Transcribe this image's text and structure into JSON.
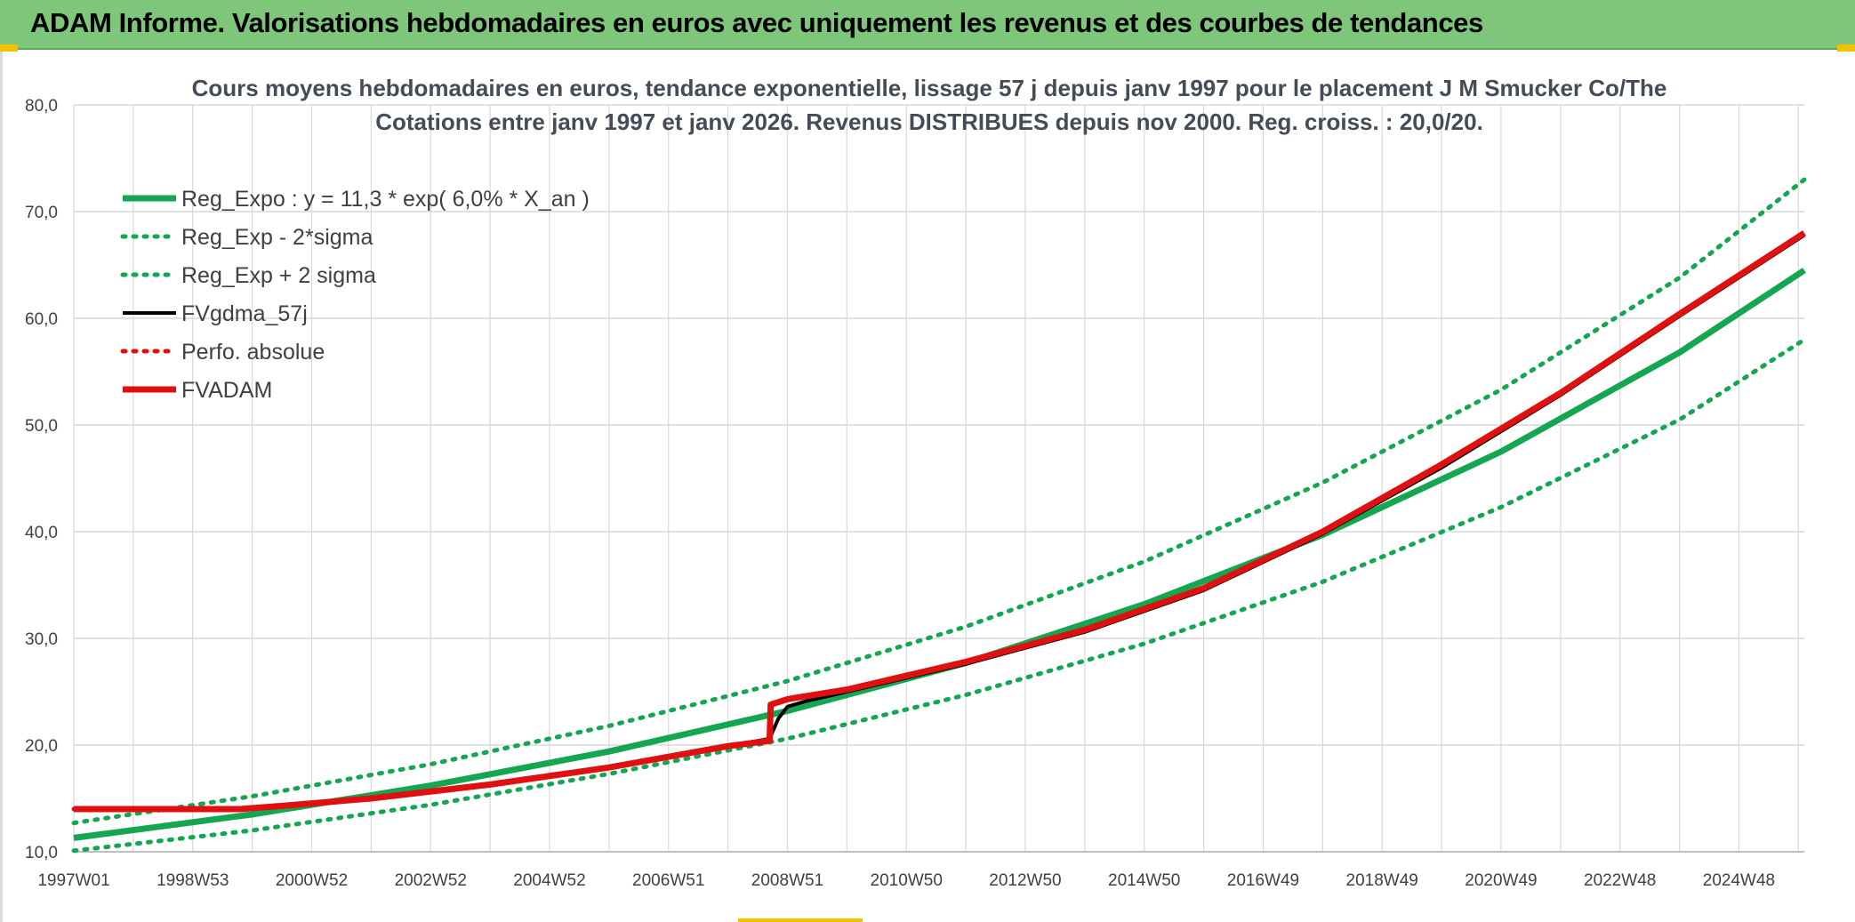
{
  "header": {
    "title": "ADAM Informe. Valorisations hebdomadaires en euros avec uniquement les revenus et des courbes de tendances"
  },
  "colors": {
    "header_bg": "#7dc67a",
    "green": "#14a650",
    "black": "#000000",
    "red": "#e01010",
    "grid": "#d9d9d9"
  },
  "chart_data": {
    "type": "line",
    "title_lines": [
      "Cours moyens hebdomadaires en euros, tendance exponentielle, lissage 57 j depuis janv 1997 pour le placement J M Smucker Co/The",
      "Cotations entre janv 1997 et janv 2026. Revenus DISTRIBUES depuis nov 2000. Reg. croiss. : 20,0/20."
    ],
    "x_tick_labels": [
      "1997W01",
      "1998W53",
      "2000W52",
      "2002W52",
      "2004W52",
      "2006W51",
      "2008W51",
      "2010W50",
      "2012W50",
      "2014W50",
      "2016W49",
      "2018W49",
      "2020W49",
      "2022W48",
      "2024W48"
    ],
    "x_tick_years": [
      1997.0,
      1999.0,
      2001.0,
      2003.0,
      2005.0,
      2007.0,
      2009.0,
      2011.0,
      2013.0,
      2015.0,
      2017.0,
      2019.0,
      2021.0,
      2023.0,
      2025.0
    ],
    "xlim": [
      1997.0,
      2026.1
    ],
    "ylim": [
      10,
      80
    ],
    "y_ticks": [
      "10,0",
      "20,0",
      "30,0",
      "40,0",
      "50,0",
      "60,0",
      "70,0",
      "80,0"
    ],
    "y_tick_values": [
      10,
      20,
      30,
      40,
      50,
      60,
      70,
      80
    ],
    "grid": true,
    "legend_position": "top-left",
    "series": [
      {
        "name": "Reg_Expo : y = 11,3 * exp( 6,0% *  X_an )",
        "style": "solid",
        "color": "#14a650",
        "x": [
          1997.0,
          2000.0,
          2003.0,
          2006.0,
          2009.0,
          2012.0,
          2015.0,
          2018.0,
          2021.0,
          2024.0,
          2026.1
        ],
        "y": [
          11.3,
          13.5,
          16.2,
          19.4,
          23.2,
          27.7,
          33.2,
          39.7,
          47.5,
          56.8,
          64.5
        ]
      },
      {
        "name": "Reg_Exp - 2*sigma",
        "style": "dotted",
        "color": "#14a650",
        "x": [
          1997.0,
          2000.0,
          2003.0,
          2006.0,
          2009.0,
          2012.0,
          2015.0,
          2018.0,
          2021.0,
          2024.0,
          2026.1
        ],
        "y": [
          10.1,
          12.0,
          14.4,
          17.3,
          20.6,
          24.7,
          29.5,
          35.3,
          42.3,
          50.5,
          58.0
        ]
      },
      {
        "name": "Reg_Exp + 2 sigma",
        "style": "dotted",
        "color": "#14a650",
        "x": [
          1997.0,
          2000.0,
          2003.0,
          2006.0,
          2009.0,
          2012.0,
          2015.0,
          2018.0,
          2021.0,
          2024.0,
          2026.1
        ],
        "y": [
          12.7,
          15.2,
          18.2,
          21.8,
          26.0,
          31.1,
          37.2,
          44.6,
          53.3,
          63.8,
          73.0
        ]
      },
      {
        "name": "FVgdma_57j",
        "style": "solid-thin",
        "color": "#000000",
        "x": [
          1997.0,
          1999.8,
          2000.5,
          2002.0,
          2004.0,
          2006.0,
          2007.0,
          2008.0,
          2008.7,
          2008.85,
          2009.0,
          2009.3,
          2010.0,
          2012.0,
          2014.0,
          2016.0,
          2018.0,
          2020.0,
          2022.0,
          2024.0,
          2026.1
        ],
        "y": [
          14.0,
          14.0,
          14.3,
          15.0,
          16.3,
          17.9,
          18.9,
          19.9,
          20.6,
          22.5,
          23.6,
          24.1,
          25.0,
          27.6,
          30.6,
          34.5,
          39.8,
          46.0,
          52.8,
          60.2,
          67.8
        ]
      },
      {
        "name": "Perfo. absolue",
        "style": "dotted",
        "color": "#e01010",
        "x": [
          1997.0,
          1999.8,
          2000.5,
          2002.0,
          2004.0,
          2006.0,
          2007.0,
          2008.0,
          2008.7,
          2008.72,
          2009.0,
          2010.0,
          2012.0,
          2014.0,
          2016.0,
          2018.0,
          2020.0,
          2022.0,
          2024.0,
          2026.1
        ],
        "y": [
          14.0,
          14.0,
          14.3,
          15.0,
          16.3,
          17.9,
          18.9,
          19.9,
          20.4,
          23.8,
          24.3,
          25.2,
          27.8,
          30.8,
          34.7,
          40.0,
          46.3,
          53.0,
          60.4,
          68.0
        ]
      },
      {
        "name": "FVADAM",
        "style": "solid",
        "color": "#e01010",
        "x": [
          1997.0,
          1999.8,
          2000.5,
          2002.0,
          2004.0,
          2006.0,
          2007.0,
          2008.0,
          2008.7,
          2008.72,
          2009.0,
          2010.0,
          2012.0,
          2014.0,
          2016.0,
          2018.0,
          2020.0,
          2022.0,
          2024.0,
          2026.1
        ],
        "y": [
          14.0,
          14.0,
          14.3,
          15.0,
          16.3,
          17.9,
          18.9,
          19.9,
          20.4,
          23.8,
          24.3,
          25.2,
          27.8,
          30.8,
          34.7,
          40.0,
          46.3,
          53.0,
          60.4,
          68.0
        ]
      }
    ]
  }
}
